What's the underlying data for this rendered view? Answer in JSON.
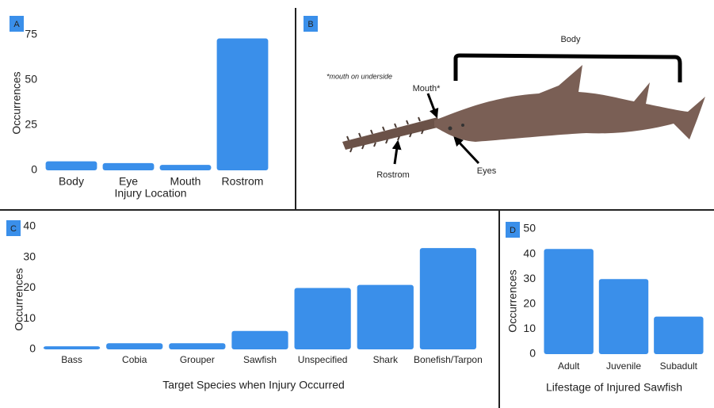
{
  "chart_data": [
    {
      "type": "bar",
      "label": "A",
      "xlabel": "Injury Location",
      "ylabel": "Occurrences",
      "categories": [
        "Body",
        "Eye",
        "Mouth",
        "Rostrom"
      ],
      "values": [
        5,
        4,
        3,
        73
      ],
      "color": "#3a8fea",
      "ylim": [
        0,
        75
      ],
      "yticks": [
        0,
        25,
        50,
        75
      ],
      "grid": false
    },
    {
      "type": "bar",
      "label": "C",
      "xlabel": "Target Species when Injury Occurred",
      "ylabel": "Occurrences",
      "categories": [
        "Bass",
        "Cobia",
        "Grouper",
        "Sawfish",
        "Unspecified",
        "Shark",
        "Bonefish/Tarpon"
      ],
      "values": [
        1,
        2,
        2,
        6,
        20,
        21,
        33
      ],
      "color": "#3a8fea",
      "ylim": [
        0,
        40
      ],
      "yticks": [
        0,
        10,
        20,
        30,
        40
      ],
      "grid": false
    },
    {
      "type": "bar",
      "label": "D",
      "xlabel": "Lifestage of Injured Sawfish",
      "ylabel": "Occurrences",
      "categories": [
        "Adult",
        "Juvenile",
        "Subadult"
      ],
      "values": [
        42,
        30,
        15
      ],
      "color": "#3a8fea",
      "ylim": [
        0,
        50
      ],
      "yticks": [
        0,
        10,
        20,
        30,
        40,
        50
      ],
      "grid": false
    }
  ],
  "diagram": {
    "label": "B",
    "note": "*mouth on underside",
    "parts": {
      "body": "Body",
      "mouth": "Mouth*",
      "rostrom": "Rostrom",
      "eyes": "Eyes"
    }
  }
}
